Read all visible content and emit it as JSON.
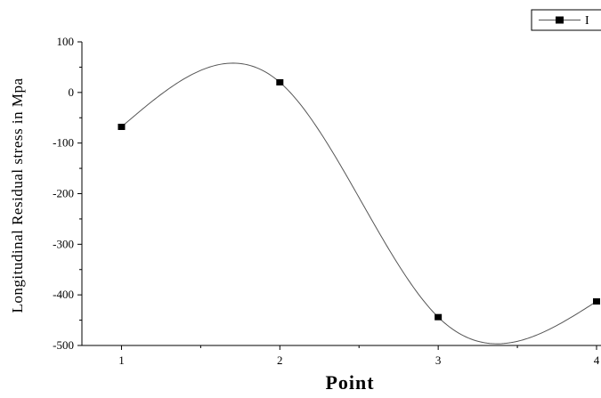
{
  "chart_data": {
    "type": "line",
    "title": "",
    "xlabel": "Point",
    "ylabel": "Longitudinal Residual stress in Mpa",
    "x": [
      1,
      2,
      3,
      4
    ],
    "xticks": [
      "1",
      "2",
      "3",
      "4"
    ],
    "yticks": [
      "100",
      "0",
      "-100",
      "-200",
      "-300",
      "-400",
      "-500"
    ],
    "ylim": [
      -500,
      100
    ],
    "xlim": [
      0.75,
      4
    ],
    "series": [
      {
        "name": "I",
        "values": [
          -68,
          20,
          -444,
          -413
        ],
        "color": "#000000",
        "marker": "square",
        "smooth": true
      }
    ],
    "legend": {
      "position": "top-right"
    },
    "grid": false
  }
}
